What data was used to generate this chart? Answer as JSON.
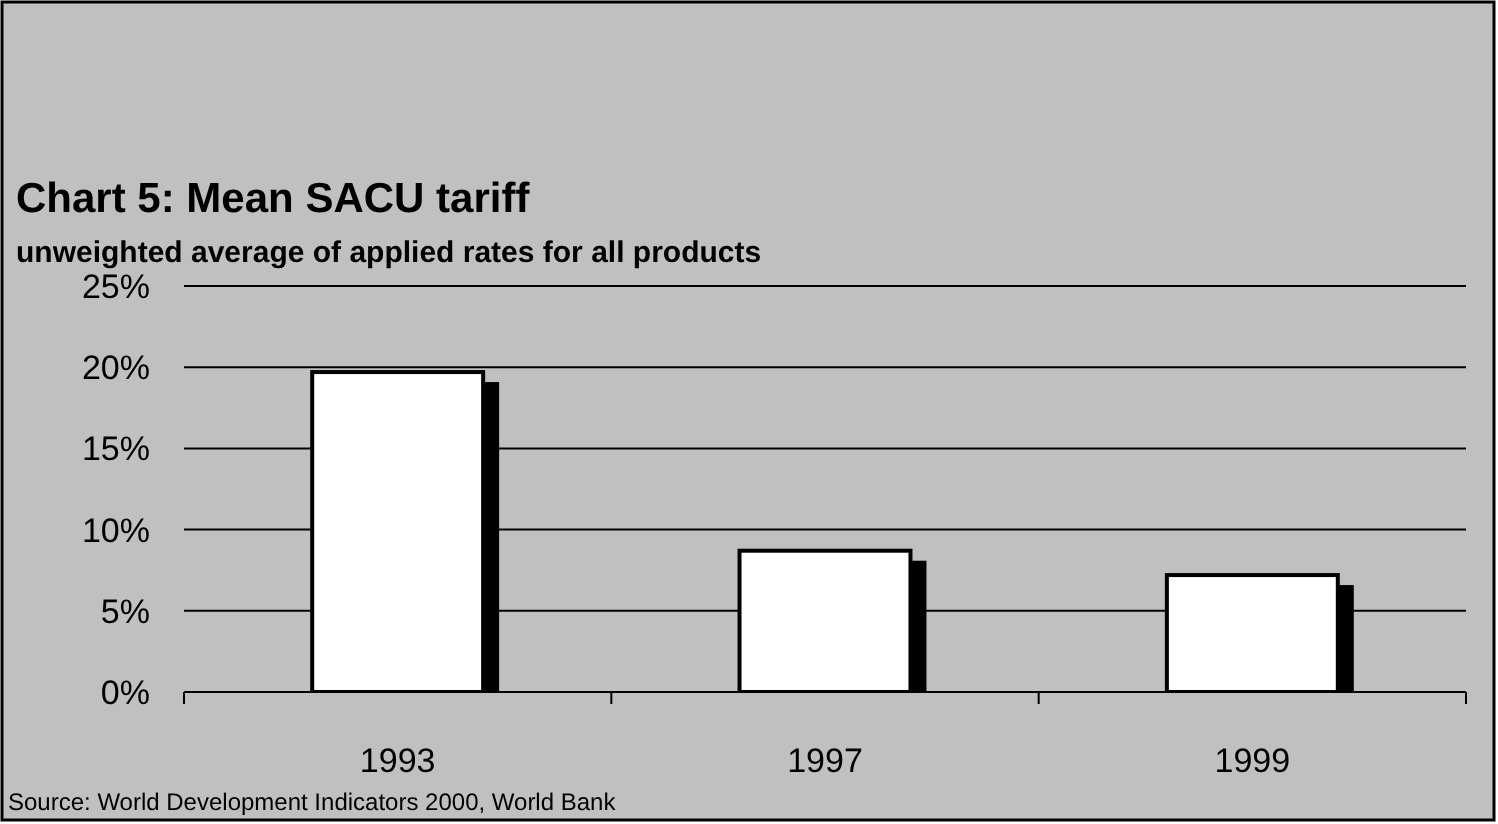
{
  "chart_data": {
    "type": "bar",
    "title": "Chart 5: Mean SACU tariff",
    "subtitle": "unweighted average of applied rates for all products",
    "categories": [
      "1993",
      "1997",
      "1999"
    ],
    "values": [
      19.7,
      8.7,
      7.2
    ],
    "color": "#ffffff",
    "ylim": [
      0,
      25
    ],
    "yticks": [
      {
        "value": 0,
        "label": "0%"
      },
      {
        "value": 5,
        "label": "5%"
      },
      {
        "value": 10,
        "label": "10%"
      },
      {
        "value": 15,
        "label": "15%"
      },
      {
        "value": 20,
        "label": "20%"
      },
      {
        "value": 25,
        "label": "25%"
      }
    ],
    "grid": "y",
    "annotations": [
      "Source: World Development Indicators 2000, World Bank"
    ]
  }
}
